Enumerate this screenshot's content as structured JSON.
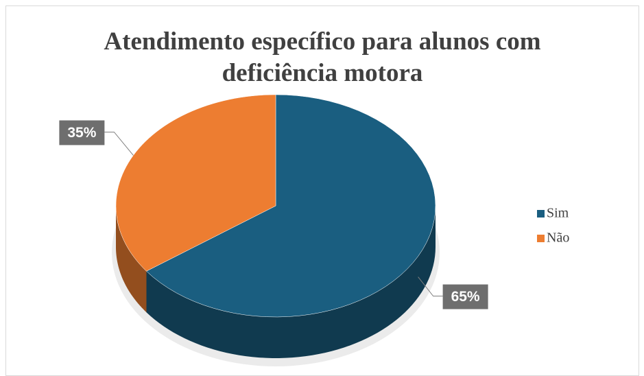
{
  "chart_data": {
    "type": "pie",
    "title": "Atendimento específico para alunos com deficiência motora",
    "categories": [
      "Sim",
      "Não"
    ],
    "values": [
      65,
      35
    ],
    "value_labels": [
      "65%",
      "35%"
    ],
    "colors": [
      "#1a5e80",
      "#ed7d31"
    ],
    "legend": "right"
  }
}
